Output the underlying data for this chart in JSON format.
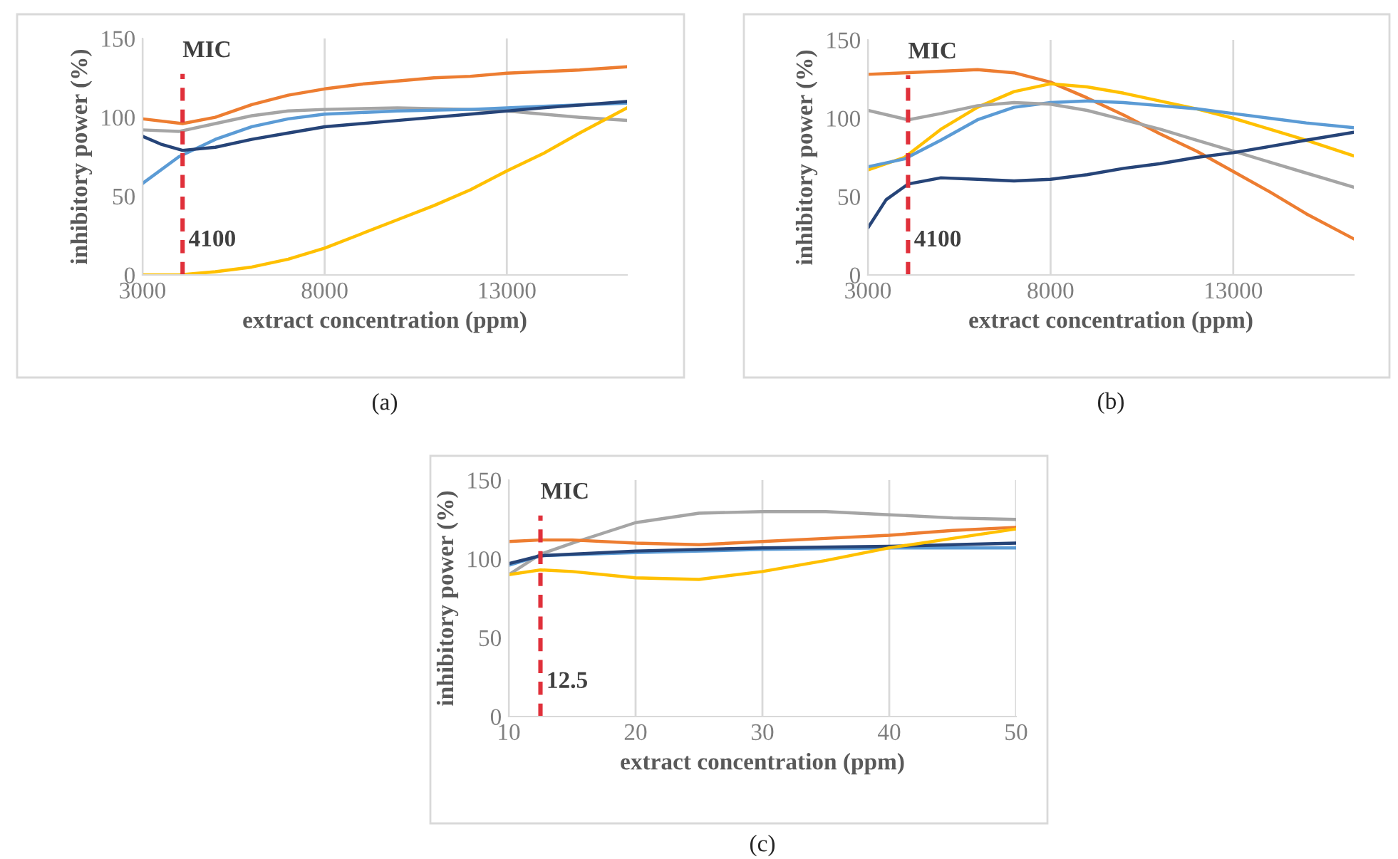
{
  "chart_data": [
    {
      "type": "line",
      "title": "(a)",
      "xlabel": "extract concentration (ppm)",
      "ylabel": "inhibitory power (%)",
      "xlim": [
        3000,
        16300
      ],
      "ylim": [
        0,
        150
      ],
      "xticks": [
        3000,
        8000,
        13000
      ],
      "yticks": [
        0,
        50,
        100,
        150
      ],
      "grid": "x",
      "legend": false,
      "marker": "none",
      "line_style": "solid",
      "ref_lines": [
        {
          "axis": "x",
          "value": 4100,
          "label": "4100",
          "color": "#e0303a",
          "line_style": "dashed"
        }
      ],
      "annotations": [
        "MIC"
      ],
      "series": [
        {
          "color": "#ed7d31",
          "x": [
            3000,
            4100,
            5000,
            6000,
            7000,
            8000,
            9000,
            10000,
            11000,
            12000,
            13000,
            14000,
            15000,
            16300
          ],
          "values": [
            99,
            96,
            100,
            108,
            114,
            118,
            121,
            123,
            125,
            126,
            128,
            129,
            130,
            132
          ]
        },
        {
          "color": "#a5a5a5",
          "x": [
            3000,
            4000,
            5000,
            6000,
            7000,
            8000,
            10000,
            12000,
            13000,
            14000,
            15000,
            16300
          ],
          "values": [
            92,
            91,
            96,
            101,
            104,
            105,
            106,
            105,
            104,
            102,
            100,
            98
          ]
        },
        {
          "color": "#5b9bd5",
          "x": [
            3000,
            4000,
            5000,
            6000,
            7000,
            8000,
            10000,
            12000,
            14000,
            16300
          ],
          "values": [
            58,
            75,
            86,
            94,
            99,
            102,
            104,
            105,
            107,
            109
          ]
        },
        {
          "color": "#264478",
          "x": [
            3000,
            3500,
            4100,
            5000,
            6000,
            7000,
            8000,
            10000,
            12000,
            14000,
            16300
          ],
          "values": [
            88,
            83,
            79,
            81,
            86,
            90,
            94,
            98,
            102,
            106,
            110
          ]
        },
        {
          "color": "#ffc000",
          "x": [
            3000,
            4000,
            5000,
            6000,
            7000,
            8000,
            9000,
            10000,
            11000,
            12000,
            13000,
            14000,
            15000,
            16300
          ],
          "values": [
            0,
            0,
            2,
            5,
            10,
            17,
            26,
            35,
            44,
            54,
            66,
            77,
            90,
            106
          ]
        }
      ]
    },
    {
      "type": "line",
      "title": "(b)",
      "xlabel": "extract concentration (ppm)",
      "ylabel": "inhibitory power (%)",
      "xlim": [
        3000,
        16300
      ],
      "ylim": [
        0,
        150
      ],
      "xticks": [
        3000,
        8000,
        13000
      ],
      "yticks": [
        0,
        50,
        100,
        150
      ],
      "grid": "x",
      "legend": false,
      "marker": "none",
      "line_style": "solid",
      "ref_lines": [
        {
          "axis": "x",
          "value": 4100,
          "label": "4100",
          "color": "#e0303a",
          "line_style": "dashed"
        }
      ],
      "annotations": [
        "MIC"
      ],
      "series": [
        {
          "color": "#ed7d31",
          "x": [
            3000,
            4000,
            5000,
            6000,
            7000,
            8000,
            9000,
            10000,
            11000,
            12000,
            13000,
            14000,
            15000,
            16300
          ],
          "values": [
            128,
            129,
            130,
            131,
            129,
            123,
            113,
            102,
            90,
            79,
            66,
            53,
            39,
            23
          ]
        },
        {
          "color": "#ffc000",
          "x": [
            3000,
            4000,
            5000,
            6000,
            7000,
            8000,
            9000,
            10000,
            11000,
            12000,
            13000,
            14000,
            15000,
            16300
          ],
          "values": [
            67,
            75,
            93,
            107,
            117,
            122,
            120,
            116,
            111,
            106,
            100,
            93,
            86,
            76
          ]
        },
        {
          "color": "#5b9bd5",
          "x": [
            3000,
            4000,
            5000,
            6000,
            7000,
            8000,
            9000,
            10000,
            11000,
            12000,
            13000,
            14000,
            15000,
            16300
          ],
          "values": [
            69,
            74,
            86,
            99,
            107,
            110,
            111,
            110,
            108,
            106,
            103,
            100,
            97,
            94
          ]
        },
        {
          "color": "#a5a5a5",
          "x": [
            3000,
            4100,
            5000,
            6000,
            7000,
            8000,
            9000,
            10000,
            11000,
            12000,
            13000,
            14000,
            15000,
            16300
          ],
          "values": [
            105,
            99,
            103,
            108,
            110,
            109,
            105,
            99,
            93,
            86,
            79,
            72,
            65,
            56
          ]
        },
        {
          "color": "#264478",
          "x": [
            3000,
            3500,
            4100,
            5000,
            6000,
            7000,
            8000,
            9000,
            10000,
            11000,
            12000,
            13000,
            14000,
            15000,
            16300
          ],
          "values": [
            30,
            48,
            58,
            62,
            61,
            60,
            61,
            64,
            68,
            71,
            75,
            78,
            82,
            86,
            91
          ]
        }
      ]
    },
    {
      "type": "line",
      "title": "(c)",
      "xlabel": "extract concentration (ppm)",
      "ylabel": "inhibitory power (%)",
      "xlim": [
        10,
        50
      ],
      "ylim": [
        0,
        150
      ],
      "xticks": [
        10,
        20,
        30,
        40,
        50
      ],
      "yticks": [
        0,
        50,
        100,
        150
      ],
      "grid": "x",
      "legend": false,
      "marker": "none",
      "line_style": "solid",
      "ref_lines": [
        {
          "axis": "x",
          "value": 12.5,
          "label": "12.5",
          "color": "#e0303a",
          "line_style": "dashed"
        }
      ],
      "annotations": [
        "MIC"
      ],
      "series": [
        {
          "color": "#a5a5a5",
          "x": [
            10,
            12.5,
            15,
            20,
            25,
            30,
            35,
            40,
            45,
            50
          ],
          "values": [
            90,
            103,
            110,
            123,
            129,
            130,
            130,
            128,
            126,
            125
          ]
        },
        {
          "color": "#ed7d31",
          "x": [
            10,
            12.5,
            15,
            20,
            25,
            30,
            35,
            40,
            45,
            50
          ],
          "values": [
            111,
            112,
            112,
            110,
            109,
            111,
            113,
            115,
            118,
            120
          ]
        },
        {
          "color": "#5b9bd5",
          "x": [
            10,
            12.5,
            20,
            30,
            40,
            50
          ],
          "values": [
            96,
            102,
            104,
            106,
            107,
            107
          ]
        },
        {
          "color": "#264478",
          "x": [
            10,
            12.5,
            20,
            30,
            40,
            50
          ],
          "values": [
            97,
            102,
            105,
            107,
            108,
            110
          ]
        },
        {
          "color": "#ffc000",
          "x": [
            10,
            12.5,
            15,
            20,
            25,
            30,
            35,
            40,
            45,
            50
          ],
          "values": [
            90,
            93,
            92,
            88,
            87,
            92,
            99,
            107,
            113,
            119
          ]
        }
      ]
    }
  ]
}
